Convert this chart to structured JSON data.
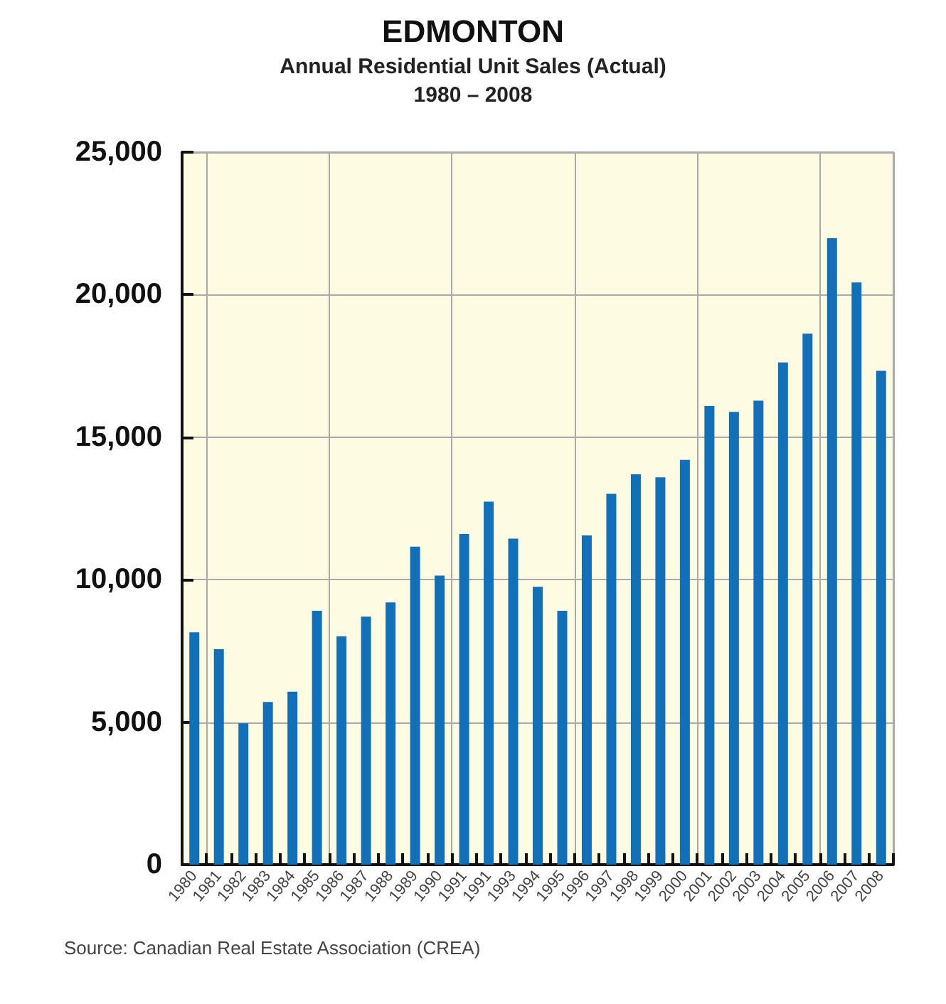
{
  "chart_data": {
    "type": "bar",
    "title": "EDMONTON",
    "subtitle": "Annual Residential Unit Sales (Actual)\n1980 – 2008",
    "categories": [
      "1980",
      "1981",
      "1982",
      "1983",
      "1984",
      "1985",
      "1986",
      "1987",
      "1988",
      "1989",
      "1990",
      "1991",
      "1991",
      "1993",
      "1994",
      "1995",
      "1996",
      "1997",
      "1998",
      "1999",
      "2000",
      "2001",
      "2002",
      "2003",
      "2004",
      "2005",
      "2006",
      "2007",
      "2008"
    ],
    "values": [
      8150,
      7560,
      4960,
      5710,
      6070,
      8910,
      8010,
      8700,
      9200,
      11160,
      10140,
      11600,
      12740,
      11440,
      9750,
      8910,
      11550,
      13010,
      13700,
      13590,
      14200,
      16090,
      15890,
      16280,
      17620,
      18630,
      21980,
      20430,
      17330
    ],
    "color": "#1170b8",
    "ylim": [
      0,
      25000
    ],
    "yticks": [
      0,
      {
        "value": 5000,
        "label": "5,000"
      },
      {
        "value": 10000,
        "label": "10,000"
      },
      {
        "value": 15000,
        "label": "15,000"
      },
      {
        "value": 20000,
        "label": "20,000"
      },
      {
        "value": 25000,
        "label": "25,000"
      }
    ],
    "grid": true,
    "annotations": [
      "Source: Canadian Real Estate Association (CREA)"
    ]
  }
}
